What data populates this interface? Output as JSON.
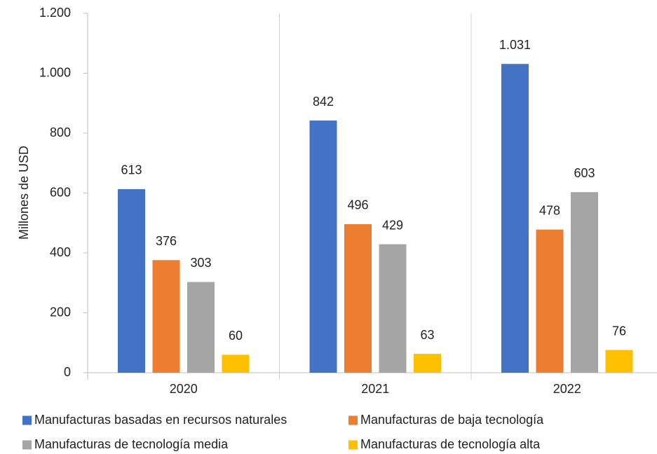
{
  "chart_data": {
    "type": "bar",
    "y_label": "Millones de USD",
    "categories": [
      "2020",
      "2021",
      "2022"
    ],
    "series": [
      {
        "name": "Manufacturas basadas en recursos naturales",
        "color": "#4472c4",
        "values": [
          613,
          842,
          1031
        ],
        "value_labels": [
          "613",
          "842",
          "1.031"
        ]
      },
      {
        "name": "Manufacturas de baja tecnología",
        "color": "#ed7d31",
        "values": [
          376,
          496,
          478
        ]
      },
      {
        "name": "Manufacturas de tecnología media",
        "color": "#a5a5a5",
        "values": [
          303,
          429,
          603
        ]
      },
      {
        "name": "Manufacturas de tecnología alta",
        "color": "#ffc000",
        "values": [
          60,
          63,
          76
        ]
      }
    ],
    "ylim": [
      0,
      1200
    ],
    "yticks": [
      0,
      200,
      400,
      600,
      800,
      {
        "value": 1000,
        "label": "1.000"
      },
      {
        "value": 1200,
        "label": "1.200"
      }
    ],
    "grid": false,
    "legend": "bottom"
  }
}
